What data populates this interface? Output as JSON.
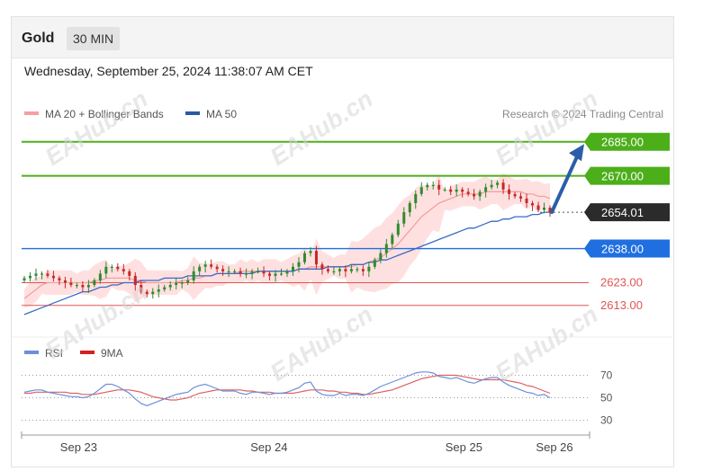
{
  "header": {
    "asset": "Gold",
    "timeframe": "30 MIN"
  },
  "datetime": "Wednesday, September 25, 2024 11:38:07 AM CET",
  "legend": {
    "ma20_label": "MA 20 + Bollinger Bands",
    "ma50_label": "MA 50",
    "credit": "Research © 2024 Trading Central"
  },
  "rsi_legend": {
    "rsi_label": "RSI",
    "ma_label": "9MA"
  },
  "watermark": "EAHub.cn",
  "colors": {
    "resistance": "#4caf1a",
    "pivot": "#1f6fe0",
    "support": "#e05555",
    "price": "#2b2b2b",
    "arrow": "#2a5ea8",
    "ma50": "#3a6bc4",
    "bollinger": "#ffd6d6",
    "ma20": "#f4a0a0",
    "candle_up": "#2e8b2e",
    "candle_down": "#c62828",
    "rsi": "#6b8fdc",
    "rsi_ma": "#e06060"
  },
  "chart_data": {
    "type": "candlestick",
    "instrument": "Gold",
    "timeframe": "30 MIN",
    "y_range": [
      2605,
      2692
    ],
    "x_labels": [
      "Sep 23",
      "Sep 24",
      "Sep 25",
      "Sep 26"
    ],
    "levels": [
      {
        "value": 2685.0,
        "label": "2685.00",
        "kind": "resistance"
      },
      {
        "value": 2670.0,
        "label": "2670.00",
        "kind": "resistance"
      },
      {
        "value": 2654.01,
        "label": "2654.01",
        "kind": "current"
      },
      {
        "value": 2638.0,
        "label": "2638.00",
        "kind": "pivot"
      },
      {
        "value": 2623.0,
        "label": "2623.00",
        "kind": "support"
      },
      {
        "value": 2613.0,
        "label": "2613.00",
        "kind": "support"
      }
    ],
    "close": [
      2625,
      2626,
      2627,
      2627,
      2626,
      2625,
      2624,
      2623,
      2622,
      2622,
      2621,
      2622,
      2624,
      2627,
      2630,
      2630,
      2629,
      2628,
      2626,
      2622,
      2619,
      2618,
      2619,
      2620,
      2621,
      2622,
      2623,
      2623,
      2624,
      2628,
      2630,
      2631,
      2630,
      2629,
      2628,
      2628,
      2628,
      2627,
      2627,
      2628,
      2628,
      2627,
      2626,
      2627,
      2627,
      2628,
      2630,
      2632,
      2636,
      2637,
      2631,
      2629,
      2628,
      2628,
      2629,
      2628,
      2629,
      2629,
      2628,
      2630,
      2633,
      2636,
      2640,
      2644,
      2649,
      2654,
      2658,
      2662,
      2665,
      2666,
      2666,
      2664,
      2664,
      2663,
      2664,
      2663,
      2662,
      2661,
      2663,
      2665,
      2666,
      2667,
      2664,
      2662,
      2661,
      2660,
      2658,
      2657,
      2655,
      2656,
      2654
    ],
    "ma50": [
      2609,
      2610,
      2611,
      2612,
      2613,
      2614,
      2615,
      2616,
      2617,
      2618,
      2619,
      2619,
      2620,
      2621,
      2621,
      2622,
      2622,
      2623,
      2623,
      2623,
      2624,
      2624,
      2624,
      2624,
      2625,
      2625,
      2625,
      2625,
      2626,
      2626,
      2626,
      2626,
      2626,
      2627,
      2627,
      2627,
      2627,
      2627,
      2627,
      2627,
      2628,
      2628,
      2628,
      2628,
      2628,
      2628,
      2628,
      2629,
      2629,
      2629,
      2629,
      2629,
      2630,
      2630,
      2630,
      2630,
      2631,
      2631,
      2631,
      2632,
      2632,
      2633,
      2633,
      2634,
      2635,
      2636,
      2637,
      2638,
      2639,
      2640,
      2641,
      2642,
      2643,
      2644,
      2645,
      2646,
      2647,
      2647,
      2648,
      2649,
      2650,
      2650,
      2651,
      2651,
      2652,
      2652,
      2652,
      2653,
      2653,
      2654,
      2654
    ],
    "ma20": [
      2616,
      2618,
      2620,
      2622,
      2623,
      2623,
      2623,
      2623,
      2623,
      2623,
      2623,
      2623,
      2624,
      2624,
      2625,
      2625,
      2625,
      2625,
      2625,
      2624,
      2624,
      2623,
      2623,
      2623,
      2623,
      2623,
      2623,
      2624,
      2624,
      2625,
      2625,
      2626,
      2626,
      2627,
      2627,
      2627,
      2627,
      2628,
      2628,
      2628,
      2628,
      2628,
      2628,
      2628,
      2628,
      2628,
      2628,
      2629,
      2629,
      2630,
      2630,
      2630,
      2630,
      2630,
      2630,
      2630,
      2630,
      2631,
      2631,
      2632,
      2633,
      2634,
      2636,
      2638,
      2640,
      2643,
      2646,
      2649,
      2652,
      2654,
      2656,
      2658,
      2659,
      2660,
      2661,
      2662,
      2662,
      2662,
      2662,
      2663,
      2663,
      2663,
      2663,
      2663,
      2663,
      2663,
      2662,
      2662,
      2661,
      2661,
      2660
    ],
    "rsi": {
      "levels": [
        70,
        50,
        30
      ],
      "rsi": [
        55,
        56,
        57,
        57,
        55,
        54,
        53,
        52,
        51,
        51,
        50,
        51,
        54,
        58,
        62,
        62,
        60,
        57,
        54,
        49,
        45,
        43,
        45,
        47,
        49,
        51,
        53,
        54,
        55,
        59,
        61,
        62,
        60,
        58,
        56,
        56,
        56,
        54,
        53,
        55,
        55,
        54,
        53,
        54,
        54,
        55,
        57,
        59,
        63,
        64,
        56,
        53,
        52,
        52,
        54,
        52,
        53,
        53,
        52,
        54,
        57,
        60,
        62,
        64,
        66,
        68,
        70,
        72,
        73,
        73,
        72,
        69,
        68,
        67,
        68,
        66,
        64,
        63,
        65,
        67,
        68,
        68,
        64,
        61,
        59,
        57,
        55,
        54,
        52,
        53,
        50
      ],
      "ma9": [
        54,
        54,
        55,
        55,
        55,
        55,
        55,
        55,
        54,
        54,
        53,
        53,
        53,
        54,
        55,
        56,
        57,
        57,
        57,
        56,
        55,
        53,
        51,
        50,
        49,
        48,
        48,
        49,
        50,
        52,
        54,
        55,
        56,
        57,
        57,
        57,
        57,
        57,
        56,
        56,
        55,
        55,
        55,
        54,
        54,
        54,
        54,
        55,
        56,
        57,
        57,
        57,
        56,
        56,
        55,
        55,
        54,
        54,
        53,
        53,
        54,
        55,
        56,
        57,
        59,
        61,
        63,
        65,
        67,
        68,
        69,
        70,
        70,
        70,
        70,
        69,
        68,
        67,
        66,
        66,
        66,
        66,
        66,
        65,
        64,
        63,
        61,
        60,
        58,
        56,
        54
      ]
    }
  }
}
